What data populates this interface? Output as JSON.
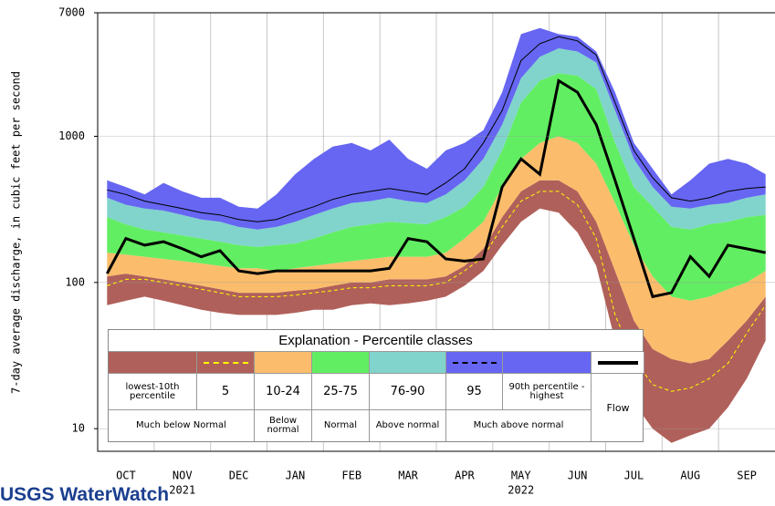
{
  "chart_data": {
    "type": "area",
    "ylabel": "7-day average discharge, in cubic feet per second",
    "yscale": "log",
    "ylim": [
      7,
      7000
    ],
    "yticks": [
      7000,
      1000,
      100,
      10
    ],
    "grid": true,
    "categories": [
      null,
      "OCT",
      null,
      null,
      "NOV",
      null,
      null,
      "DEC",
      null,
      null,
      "JAN",
      null,
      null,
      "FEB",
      null,
      null,
      "MAR",
      null,
      null,
      "APR",
      null,
      null,
      "MAY",
      null,
      null,
      "JUN",
      null,
      null,
      "JUL",
      null,
      null,
      "AUG",
      null,
      null,
      "SEP",
      null
    ],
    "x_sublabels": [
      null,
      null,
      null,
      null,
      "2021",
      null,
      null,
      null,
      null,
      null,
      null,
      null,
      null,
      null,
      null,
      null,
      null,
      null,
      null,
      null,
      null,
      null,
      "2022",
      null,
      null,
      null,
      null,
      null,
      null,
      null,
      null,
      null,
      null,
      null,
      null,
      null
    ],
    "series": [
      {
        "name": "lowest-10th percentile",
        "kind": "band",
        "color": "#b0605a",
        "base": [
          70,
          75,
          80,
          75,
          70,
          65,
          62,
          60,
          60,
          60,
          62,
          65,
          65,
          70,
          72,
          70,
          72,
          75,
          80,
          95,
          120,
          180,
          260,
          320,
          300,
          220,
          130,
          40,
          15,
          10,
          8,
          9,
          10,
          14,
          22,
          40
        ],
        "values": [
          110,
          115,
          110,
          105,
          100,
          95,
          90,
          85,
          85,
          85,
          88,
          90,
          95,
          100,
          100,
          105,
          105,
          105,
          110,
          130,
          170,
          280,
          420,
          500,
          500,
          420,
          260,
          120,
          55,
          35,
          30,
          28,
          30,
          40,
          55,
          80
        ]
      },
      {
        "name": "5",
        "kind": "line",
        "color": "#ffff00",
        "dash": true,
        "values": [
          95,
          105,
          105,
          100,
          95,
          90,
          85,
          80,
          80,
          80,
          82,
          85,
          88,
          92,
          92,
          95,
          95,
          95,
          100,
          120,
          150,
          240,
          360,
          420,
          420,
          340,
          200,
          60,
          30,
          20,
          18,
          19,
          22,
          28,
          45,
          70
        ]
      },
      {
        "name": "10-24",
        "kind": "band",
        "color": "#fbbd6b",
        "values": [
          160,
          155,
          150,
          145,
          140,
          135,
          130,
          125,
          125,
          120,
          125,
          130,
          135,
          140,
          145,
          150,
          150,
          150,
          160,
          200,
          260,
          450,
          700,
          900,
          1000,
          900,
          650,
          350,
          180,
          110,
          80,
          75,
          80,
          90,
          100,
          120
        ]
      },
      {
        "name": "25-75",
        "kind": "band",
        "color": "#62ee62",
        "values": [
          280,
          250,
          230,
          220,
          210,
          200,
          190,
          180,
          175,
          180,
          185,
          200,
          220,
          240,
          250,
          260,
          255,
          250,
          280,
          330,
          450,
          800,
          1700,
          2400,
          2700,
          2600,
          2100,
          900,
          450,
          330,
          240,
          230,
          250,
          260,
          280,
          290
        ]
      },
      {
        "name": "76-90",
        "kind": "band",
        "color": "#80d4cc",
        "values": [
          380,
          340,
          320,
          310,
          290,
          270,
          260,
          240,
          230,
          240,
          260,
          290,
          320,
          350,
          360,
          380,
          360,
          350,
          400,
          500,
          700,
          1200,
          2500,
          3500,
          4000,
          3800,
          3200,
          1500,
          700,
          450,
          330,
          320,
          340,
          350,
          380,
          400
        ]
      },
      {
        "name": "95",
        "kind": "line",
        "color": "#000000",
        "dash": true,
        "values": [
          430,
          400,
          360,
          340,
          320,
          300,
          290,
          270,
          260,
          270,
          300,
          330,
          370,
          400,
          420,
          440,
          420,
          400,
          480,
          600,
          900,
          1500,
          3300,
          4300,
          4800,
          4500,
          3600,
          1700,
          800,
          520,
          380,
          360,
          380,
          420,
          440,
          450
        ]
      },
      {
        "name": "90th percentile -highest",
        "kind": "band",
        "color": "#6666f2",
        "values": [
          500,
          450,
          400,
          480,
          420,
          380,
          380,
          330,
          320,
          400,
          550,
          700,
          850,
          900,
          800,
          950,
          700,
          600,
          800,
          900,
          1100,
          2000,
          5000,
          5500,
          5000,
          4800,
          3800,
          2000,
          900,
          600,
          400,
          500,
          650,
          700,
          650,
          550
        ]
      },
      {
        "name": "Flow",
        "kind": "line",
        "color": "#000000",
        "thick": true,
        "values": [
          115,
          200,
          180,
          190,
          170,
          150,
          165,
          120,
          115,
          120,
          120,
          120,
          120,
          120,
          120,
          125,
          200,
          190,
          145,
          140,
          145,
          450,
          700,
          550,
          2400,
          2000,
          1200,
          500,
          200,
          80,
          85,
          150,
          110,
          180,
          170,
          160
        ]
      }
    ],
    "legend": {
      "title": "Explanation - Percentile classes",
      "classes": [
        "Much below Normal",
        "Below normal",
        "Normal",
        "Above normal",
        "Much above normal"
      ]
    }
  },
  "logo": "USGS WaterWatch"
}
